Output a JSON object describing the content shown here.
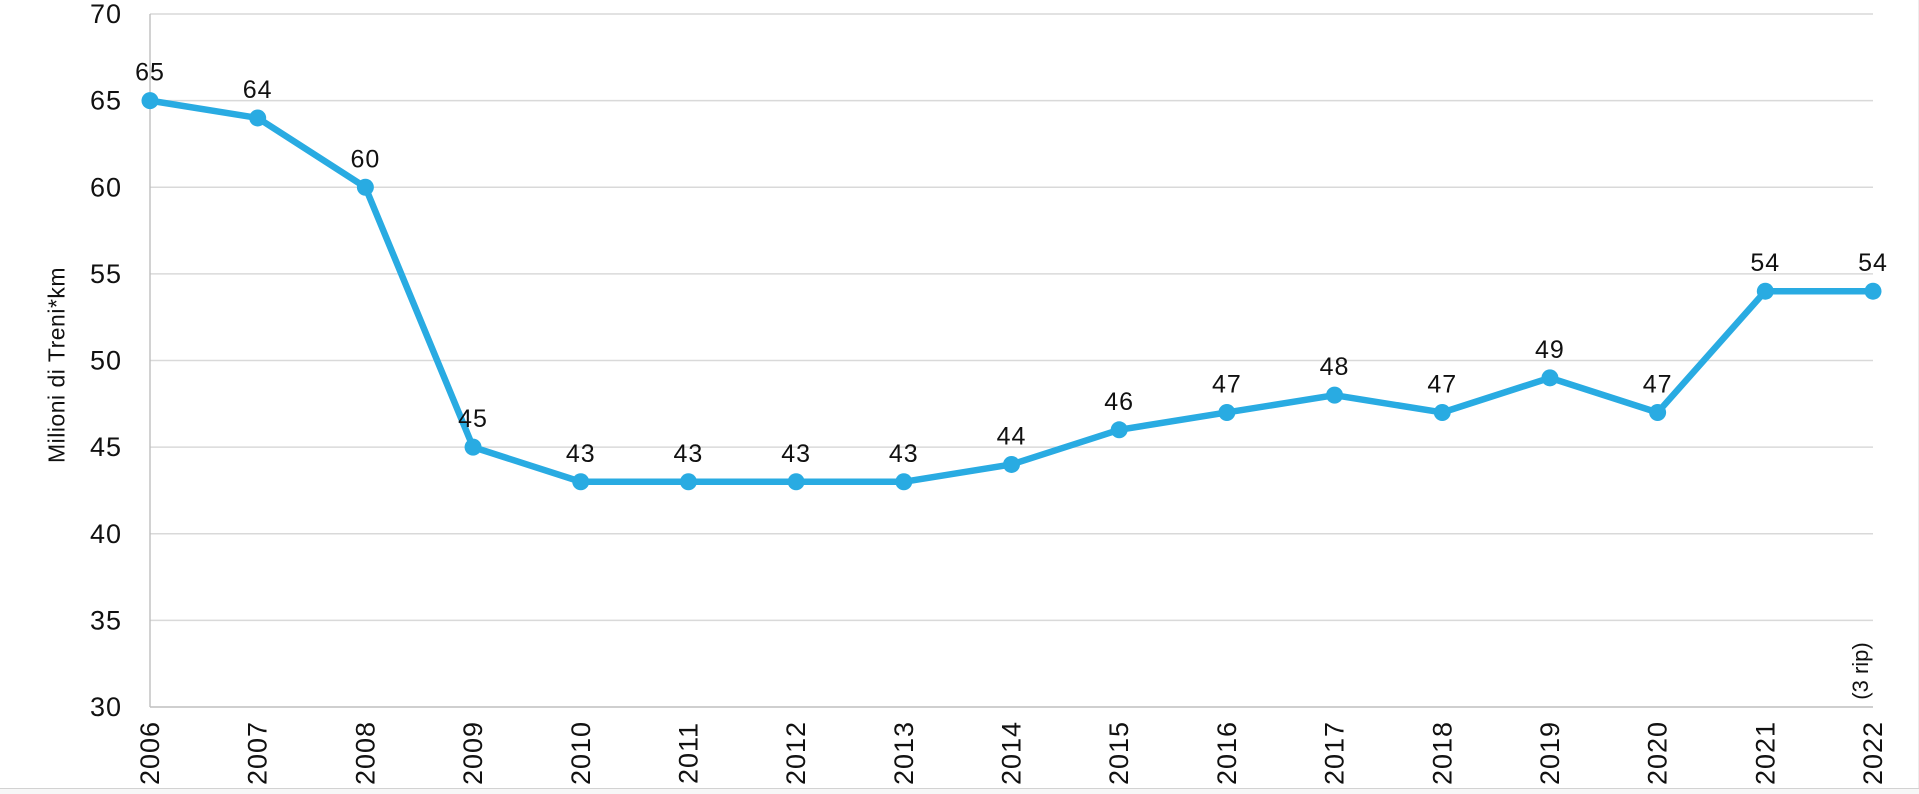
{
  "chart_data": {
    "type": "line",
    "title": "",
    "xlabel": "",
    "ylabel": "Milioni di Treni*km",
    "categories": [
      "2006",
      "2007",
      "2008",
      "2009",
      "2010",
      "2011",
      "2012",
      "2013",
      "2014",
      "2015",
      "2016",
      "2017",
      "2018",
      "2019",
      "2020",
      "2021",
      "2022"
    ],
    "series": [
      {
        "name": "Milioni di Treni*km",
        "values": [
          65,
          64,
          60,
          45,
          43,
          43,
          43,
          43,
          44,
          46,
          47,
          48,
          47,
          49,
          47,
          54,
          54
        ],
        "color": "#29ABE2"
      }
    ],
    "ylim": [
      30,
      70
    ],
    "ytick_step": 5,
    "yticks": [
      "30",
      "35",
      "40",
      "45",
      "50",
      "55",
      "60",
      "65",
      "70"
    ],
    "grid": "horizontal",
    "legend": "none",
    "data_labels": true,
    "annotation": {
      "text": "(3 rip)",
      "category": "2022"
    },
    "colors": {
      "series_blue": "#29ABE2",
      "gridline": "#d9d9d9",
      "axis_line": "#bfbfbf",
      "text": "#111111"
    }
  }
}
